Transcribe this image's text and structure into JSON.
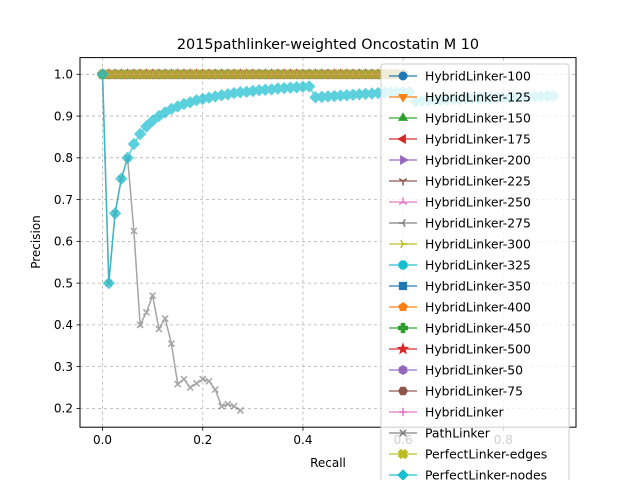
{
  "chart_data": {
    "type": "line",
    "title": "2015pathlinker-weighted Oncostatin M 10",
    "xlabel": "Recall",
    "ylabel": "Precision",
    "xlim": [
      -0.045,
      0.945
    ],
    "ylim": [
      0.155,
      1.04
    ],
    "xticks": [
      0.0,
      0.2,
      0.4,
      0.6,
      0.8
    ],
    "xtick_labels": [
      "0.0",
      "0.2",
      "0.4",
      "0.6",
      "0.8"
    ],
    "yticks": [
      0.2,
      0.3,
      0.4,
      0.5,
      0.6,
      0.7,
      0.8,
      0.9,
      1.0
    ],
    "ytick_labels": [
      "0.2",
      "0.3",
      "0.4",
      "0.5",
      "0.6",
      "0.7",
      "0.8",
      "0.9",
      "1.0"
    ],
    "grid": true,
    "legend_position": "right",
    "series": [
      {
        "name": "HybridLinker-100",
        "color": "#1f77b4",
        "marker": "circle",
        "points": [
          [
            0,
            1.0
          ],
          [
            0.3,
            1.0
          ],
          [
            0.6,
            1.0
          ]
        ]
      },
      {
        "name": "HybridLinker-125",
        "color": "#ff7f0e",
        "marker": "triangle-down",
        "points": [
          [
            0,
            1.0
          ],
          [
            0.3,
            1.0
          ],
          [
            0.6,
            1.0
          ]
        ]
      },
      {
        "name": "HybridLinker-150",
        "color": "#2ca02c",
        "marker": "triangle-up",
        "points": [
          [
            0,
            1.0
          ],
          [
            0.3,
            1.0
          ],
          [
            0.6,
            1.0
          ]
        ]
      },
      {
        "name": "HybridLinker-175",
        "color": "#d62728",
        "marker": "triangle-left",
        "points": [
          [
            0,
            1.0
          ],
          [
            0.3,
            1.0
          ],
          [
            0.6,
            1.0
          ]
        ]
      },
      {
        "name": "HybridLinker-200",
        "color": "#9467bd",
        "marker": "triangle-right",
        "points": [
          [
            0,
            1.0
          ],
          [
            0.3,
            1.0
          ],
          [
            0.6,
            1.0
          ]
        ]
      },
      {
        "name": "HybridLinker-225",
        "color": "#8c564b",
        "marker": "tri-down",
        "points": [
          [
            0,
            1.0
          ],
          [
            0.3,
            1.0
          ],
          [
            0.6,
            1.0
          ]
        ]
      },
      {
        "name": "HybridLinker-250",
        "color": "#e377c2",
        "marker": "tri-up",
        "points": [
          [
            0,
            1.0
          ],
          [
            0.3,
            1.0
          ],
          [
            0.6,
            1.0
          ]
        ]
      },
      {
        "name": "HybridLinker-275",
        "color": "#7f7f7f",
        "marker": "tri-left",
        "points": [
          [
            0,
            1.0
          ],
          [
            0.3,
            1.0
          ],
          [
            0.6,
            1.0
          ]
        ]
      },
      {
        "name": "HybridLinker-300",
        "color": "#bcbd22",
        "marker": "tri-right",
        "points": [
          [
            0,
            1.0
          ],
          [
            0.3,
            1.0
          ],
          [
            0.6,
            1.0
          ]
        ]
      },
      {
        "name": "HybridLinker-325",
        "color": "#17becf",
        "marker": "octagon",
        "points": [
          [
            0,
            1.0
          ],
          [
            0.3,
            1.0
          ],
          [
            0.6,
            1.0
          ]
        ]
      },
      {
        "name": "HybridLinker-350",
        "color": "#1f77b4",
        "marker": "square",
        "points": [
          [
            0,
            1.0
          ],
          [
            0.3,
            1.0
          ],
          [
            0.6,
            1.0
          ]
        ]
      },
      {
        "name": "HybridLinker-400",
        "color": "#ff7f0e",
        "marker": "pentagon",
        "points": [
          [
            0,
            1.0
          ],
          [
            0.3,
            1.0
          ],
          [
            0.6,
            1.0
          ]
        ]
      },
      {
        "name": "HybridLinker-450",
        "color": "#2ca02c",
        "marker": "plus-filled",
        "points": [
          [
            0,
            1.0
          ],
          [
            0.3,
            1.0
          ],
          [
            0.6,
            1.0
          ]
        ]
      },
      {
        "name": "HybridLinker-500",
        "color": "#d62728",
        "marker": "star",
        "points": [
          [
            0,
            1.0
          ],
          [
            0.3,
            1.0
          ],
          [
            0.6,
            1.0
          ]
        ]
      },
      {
        "name": "HybridLinker-50",
        "color": "#9467bd",
        "marker": "hexagon",
        "points": [
          [
            0,
            1.0
          ],
          [
            0.3,
            1.0
          ],
          [
            0.6,
            1.0
          ]
        ]
      },
      {
        "name": "HybridLinker-75",
        "color": "#8c564b",
        "marker": "hexagon2",
        "points": [
          [
            0,
            1.0
          ],
          [
            0.3,
            1.0
          ],
          [
            0.6,
            1.0
          ]
        ]
      },
      {
        "name": "HybridLinker",
        "color": "#e377c2",
        "marker": "plus",
        "points": [
          [
            0,
            1.0
          ],
          [
            0.3,
            1.0
          ],
          [
            0.6,
            1.0
          ]
        ]
      },
      {
        "name": "PathLinker",
        "color": "#7f7f7f",
        "marker": "x",
        "points": [
          [
            0.0,
            1.0
          ],
          [
            0.0125,
            0.5
          ],
          [
            0.025,
            0.667
          ],
          [
            0.0375,
            0.75
          ],
          [
            0.05,
            0.8
          ],
          [
            0.0625,
            0.625
          ],
          [
            0.075,
            0.4
          ],
          [
            0.0875,
            0.43
          ],
          [
            0.1,
            0.47
          ],
          [
            0.1125,
            0.39
          ],
          [
            0.125,
            0.415
          ],
          [
            0.1375,
            0.355
          ],
          [
            0.15,
            0.258
          ],
          [
            0.1625,
            0.27
          ],
          [
            0.175,
            0.25
          ],
          [
            0.1875,
            0.26
          ],
          [
            0.2,
            0.27
          ],
          [
            0.2125,
            0.265
          ],
          [
            0.225,
            0.245
          ],
          [
            0.2375,
            0.205
          ],
          [
            0.25,
            0.21
          ],
          [
            0.2625,
            0.205
          ],
          [
            0.275,
            0.195
          ]
        ]
      },
      {
        "name": "PerfectLinker-edges",
        "color": "#bcbd22",
        "marker": "x-filled",
        "points": [
          [
            0.0,
            1.0
          ],
          [
            0.6,
            1.0
          ]
        ]
      },
      {
        "name": "PerfectLinker-nodes",
        "color": "#17becf",
        "marker": "diamond",
        "points": [
          [
            0.0,
            1.0
          ],
          [
            0.0125,
            0.5
          ],
          [
            0.025,
            0.667
          ],
          [
            0.0375,
            0.75
          ],
          [
            0.05,
            0.8
          ],
          [
            0.0625,
            0.833
          ],
          [
            0.075,
            0.857
          ],
          [
            0.0875,
            0.875
          ],
          [
            0.1,
            0.889
          ],
          [
            0.1125,
            0.9
          ],
          [
            0.125,
            0.909
          ],
          [
            0.1375,
            0.917
          ],
          [
            0.15,
            0.923
          ],
          [
            0.1625,
            0.929
          ],
          [
            0.175,
            0.933
          ],
          [
            0.1875,
            0.938
          ],
          [
            0.2,
            0.941
          ],
          [
            0.2125,
            0.944
          ],
          [
            0.225,
            0.947
          ],
          [
            0.2375,
            0.95
          ],
          [
            0.25,
            0.952
          ],
          [
            0.2625,
            0.955
          ],
          [
            0.275,
            0.957
          ],
          [
            0.2875,
            0.958
          ],
          [
            0.3,
            0.96
          ],
          [
            0.3125,
            0.962
          ],
          [
            0.325,
            0.963
          ],
          [
            0.3375,
            0.964
          ],
          [
            0.35,
            0.966
          ],
          [
            0.3625,
            0.967
          ],
          [
            0.375,
            0.968
          ],
          [
            0.3875,
            0.969
          ],
          [
            0.4,
            0.97
          ],
          [
            0.4125,
            0.971
          ],
          [
            0.425,
            0.945
          ],
          [
            0.4375,
            0.946
          ],
          [
            0.45,
            0.947
          ],
          [
            0.4625,
            0.948
          ],
          [
            0.475,
            0.949
          ],
          [
            0.4875,
            0.95
          ],
          [
            0.5,
            0.951
          ],
          [
            0.5125,
            0.952
          ],
          [
            0.525,
            0.953
          ],
          [
            0.5375,
            0.954
          ],
          [
            0.55,
            0.955
          ],
          [
            0.5625,
            0.956
          ],
          [
            0.575,
            0.957
          ],
          [
            0.5875,
            0.957
          ],
          [
            0.6,
            0.958
          ],
          [
            0.6125,
            0.958
          ],
          [
            0.625,
            0.935
          ],
          [
            0.6375,
            0.936
          ],
          [
            0.65,
            0.937
          ],
          [
            0.6625,
            0.938
          ],
          [
            0.675,
            0.938
          ],
          [
            0.6875,
            0.939
          ],
          [
            0.7,
            0.94
          ],
          [
            0.7125,
            0.94
          ],
          [
            0.725,
            0.941
          ],
          [
            0.7375,
            0.942
          ],
          [
            0.75,
            0.942
          ],
          [
            0.7625,
            0.943
          ],
          [
            0.775,
            0.943
          ],
          [
            0.7875,
            0.944
          ],
          [
            0.8,
            0.944
          ],
          [
            0.8125,
            0.945
          ],
          [
            0.825,
            0.945
          ],
          [
            0.8375,
            0.946
          ],
          [
            0.85,
            0.946
          ],
          [
            0.8625,
            0.947
          ],
          [
            0.875,
            0.947
          ],
          [
            0.8875,
            0.948
          ],
          [
            0.9,
            0.948
          ]
        ]
      }
    ]
  }
}
